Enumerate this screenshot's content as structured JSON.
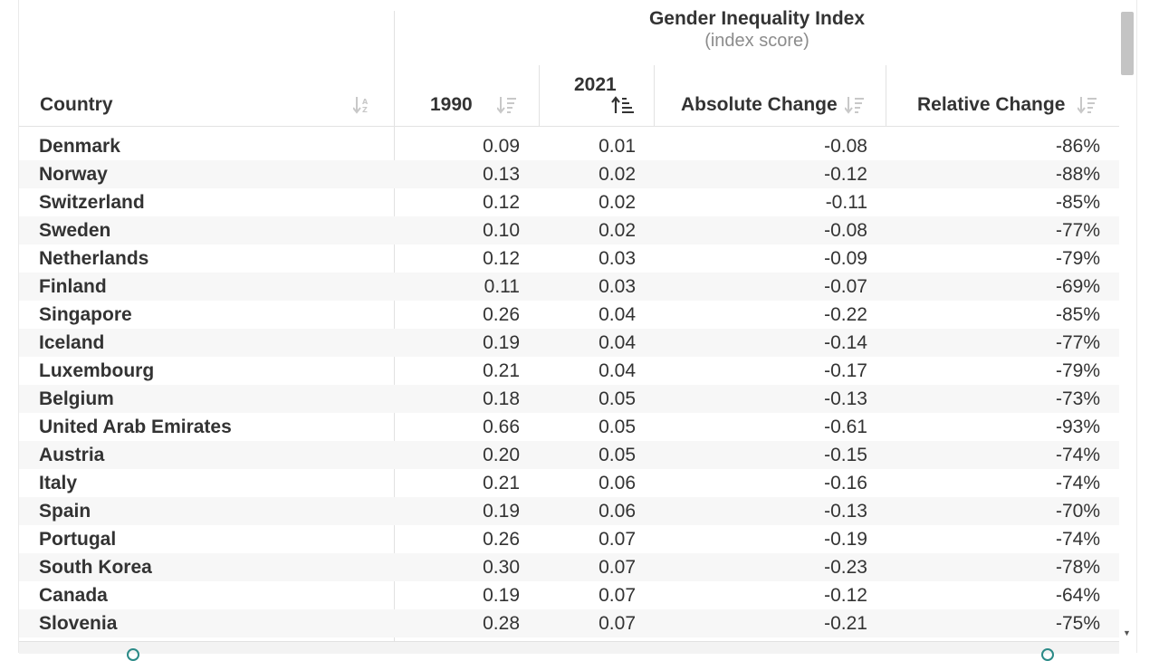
{
  "chart_data": {
    "type": "table",
    "super_header": {
      "title": "Gender Inequality Index",
      "subtitle": "(index score)"
    },
    "columns": [
      "Country",
      "1990",
      "2021",
      "Absolute Change",
      "Relative Change"
    ],
    "sorted_by": "2021",
    "rows": [
      [
        "Denmark",
        "0.09",
        "0.01",
        "-0.08",
        "-86%"
      ],
      [
        "Norway",
        "0.13",
        "0.02",
        "-0.12",
        "-88%"
      ],
      [
        "Switzerland",
        "0.12",
        "0.02",
        "-0.11",
        "-85%"
      ],
      [
        "Sweden",
        "0.10",
        "0.02",
        "-0.08",
        "-77%"
      ],
      [
        "Netherlands",
        "0.12",
        "0.03",
        "-0.09",
        "-79%"
      ],
      [
        "Finland",
        "0.11",
        "0.03",
        "-0.07",
        "-69%"
      ],
      [
        "Singapore",
        "0.26",
        "0.04",
        "-0.22",
        "-85%"
      ],
      [
        "Iceland",
        "0.19",
        "0.04",
        "-0.14",
        "-77%"
      ],
      [
        "Luxembourg",
        "0.21",
        "0.04",
        "-0.17",
        "-79%"
      ],
      [
        "Belgium",
        "0.18",
        "0.05",
        "-0.13",
        "-73%"
      ],
      [
        "United Arab Emirates",
        "0.66",
        "0.05",
        "-0.61",
        "-93%"
      ],
      [
        "Austria",
        "0.20",
        "0.05",
        "-0.15",
        "-74%"
      ],
      [
        "Italy",
        "0.21",
        "0.06",
        "-0.16",
        "-74%"
      ],
      [
        "Spain",
        "0.19",
        "0.06",
        "-0.13",
        "-70%"
      ],
      [
        "Portugal",
        "0.26",
        "0.07",
        "-0.19",
        "-74%"
      ],
      [
        "South Korea",
        "0.30",
        "0.07",
        "-0.23",
        "-78%"
      ],
      [
        "Canada",
        "0.19",
        "0.07",
        "-0.12",
        "-64%"
      ],
      [
        "Slovenia",
        "0.28",
        "0.07",
        "-0.21",
        "-75%"
      ]
    ]
  },
  "icons": {
    "sort_default": "sort-icon",
    "sort_active": "sort-ascending-icon",
    "scroll_down": "scroll-down-arrow-icon"
  },
  "colors": {
    "text": "#333333",
    "muted": "#8c8c8c",
    "row_alt": "#f7f7f7",
    "icon": "#c8c8c8",
    "icon_active": "#333333",
    "accent": "#2b8a87"
  }
}
